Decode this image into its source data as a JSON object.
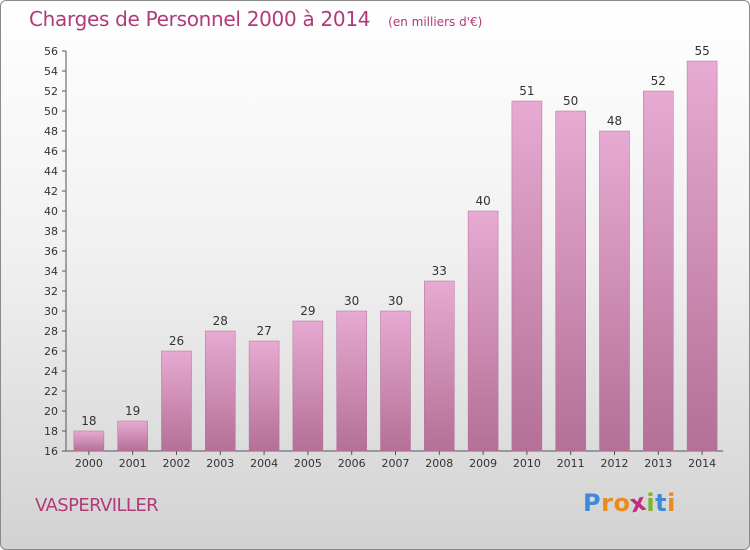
{
  "title": "Charges de Personnel 2000 à 2014",
  "subtitle": "(en milliers d'€)",
  "commune": "VASPERVILLER",
  "logo": {
    "letters": [
      "P",
      "r",
      "o",
      "x",
      "i",
      "t",
      "i"
    ],
    "colors": [
      "#3e8ad6",
      "#e98b1e",
      "#e98b1e",
      "#c22c7c",
      "#77b82a",
      "#3e8ad6",
      "#e98b1e"
    ]
  },
  "colors": {
    "accent": "#b03a7a",
    "bar_top": "#e7aad2",
    "bar_bottom": "#b47096"
  },
  "chart_data": {
    "type": "bar",
    "title": "Charges de Personnel 2000 à 2014",
    "subtitle": "(en milliers d'€)",
    "xlabel": "",
    "ylabel": "",
    "categories": [
      "2000",
      "2001",
      "2002",
      "2003",
      "2004",
      "2005",
      "2006",
      "2007",
      "2008",
      "2009",
      "2010",
      "2011",
      "2012",
      "2013",
      "2014"
    ],
    "values": [
      18,
      19,
      26,
      28,
      27,
      29,
      30,
      30,
      33,
      40,
      51,
      50,
      48,
      52,
      55
    ],
    "ylim": [
      16,
      56
    ],
    "yticks": [
      "16",
      "18",
      "20",
      "22",
      "24",
      "26",
      "28",
      "30",
      "32",
      "34",
      "36",
      "38",
      "40",
      "42",
      "44",
      "46",
      "48",
      "50",
      "52",
      "54",
      "56"
    ],
    "grid": false
  }
}
